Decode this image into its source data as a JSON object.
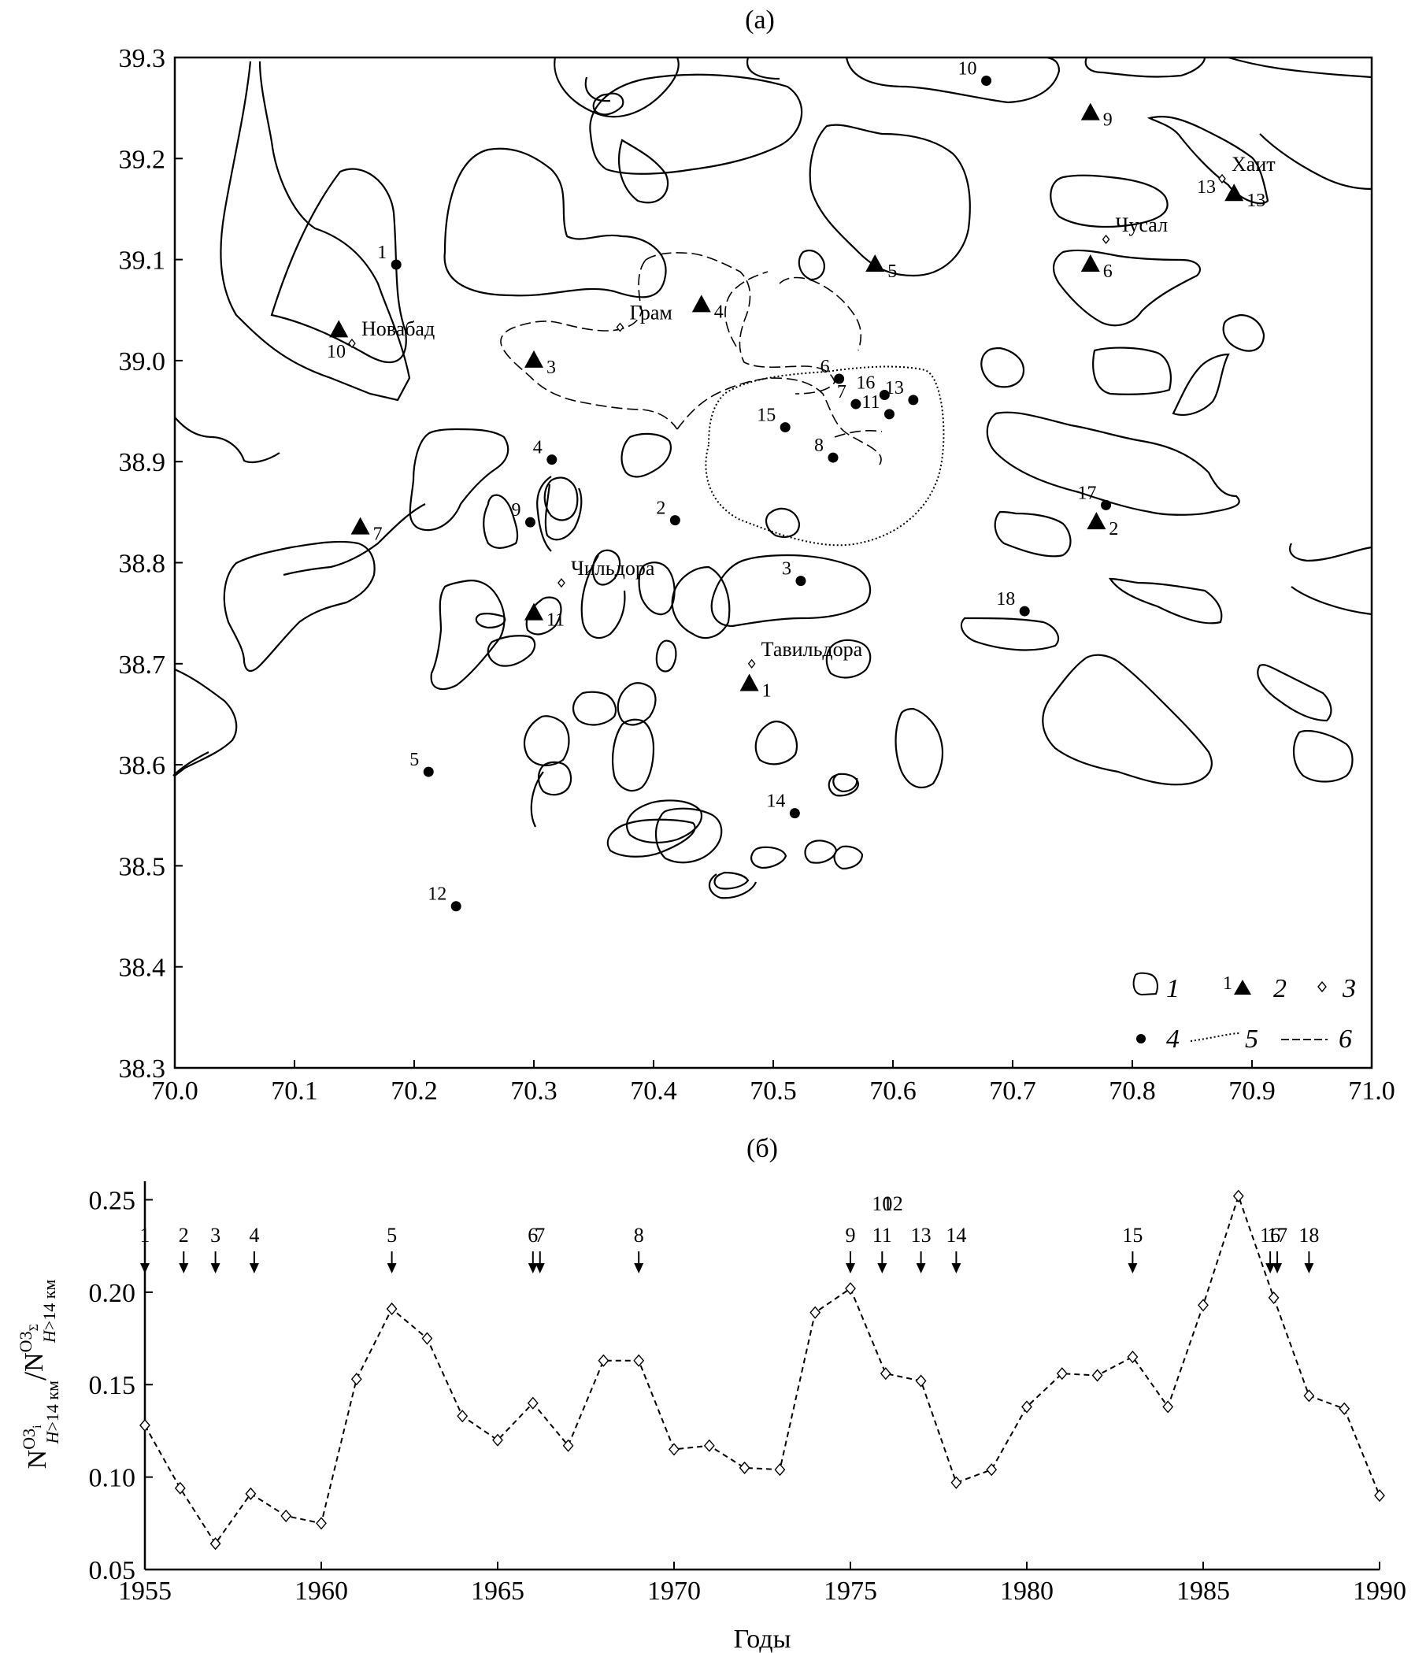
{
  "figure": {
    "panel_a": "(а)",
    "panel_b": "(б)",
    "xlabel_b": "Годы",
    "ylabel_b": "N^{O3i}_{H>14 км} / N^{O3Σ}_{H>14 км}"
  },
  "chart_data": [
    {
      "type": "scatter",
      "panel": "(а)",
      "xlim": [
        70.0,
        71.0
      ],
      "ylim": [
        38.3,
        39.3
      ],
      "xticks": [
        "70.0",
        "70.1",
        "70.2",
        "70.3",
        "70.4",
        "70.5",
        "70.6",
        "70.7",
        "70.8",
        "70.9",
        "71.0"
      ],
      "yticks": [
        "38.3",
        "38.4",
        "38.5",
        "38.6",
        "38.7",
        "38.8",
        "38.9",
        "39.0",
        "39.1",
        "39.2",
        "39.3"
      ],
      "legend": [
        {
          "symbol": "contour",
          "label": "1"
        },
        {
          "symbol": "triangle",
          "label": "2",
          "marker_number": "1"
        },
        {
          "symbol": "diamond",
          "label": "3"
        },
        {
          "symbol": "circle",
          "label": "4"
        },
        {
          "symbol": "dotted-line",
          "label": "5"
        },
        {
          "symbol": "cross-line",
          "label": "6"
        }
      ],
      "legend_position": "bottom-right",
      "triangles": [
        {
          "n": "1",
          "x": 70.48,
          "y": 38.68
        },
        {
          "n": "2",
          "x": 70.77,
          "y": 38.84
        },
        {
          "n": "3",
          "x": 70.3,
          "y": 39.0
        },
        {
          "n": "4",
          "x": 70.44,
          "y": 39.055
        },
        {
          "n": "5",
          "x": 70.585,
          "y": 39.095
        },
        {
          "n": "6",
          "x": 70.765,
          "y": 39.095
        },
        {
          "n": "7",
          "x": 70.155,
          "y": 38.835
        },
        {
          "n": "9",
          "x": 70.765,
          "y": 39.245
        },
        {
          "n": "11",
          "x": 70.3,
          "y": 38.75
        },
        {
          "n": "13",
          "x": 70.885,
          "y": 39.165
        },
        {
          "n": "",
          "x": 70.137,
          "y": 39.03
        }
      ],
      "circles": [
        {
          "n": "1",
          "x": 70.185,
          "y": 39.095
        },
        {
          "n": "2",
          "x": 70.418,
          "y": 38.842
        },
        {
          "n": "3",
          "x": 70.523,
          "y": 38.782
        },
        {
          "n": "4",
          "x": 70.315,
          "y": 38.902
        },
        {
          "n": "5",
          "x": 70.212,
          "y": 38.593
        },
        {
          "n": "6",
          "x": 70.555,
          "y": 38.982
        },
        {
          "n": "7",
          "x": 70.569,
          "y": 38.957
        },
        {
          "n": "8",
          "x": 70.55,
          "y": 38.904
        },
        {
          "n": "9",
          "x": 70.297,
          "y": 38.84
        },
        {
          "n": "10",
          "x": 70.678,
          "y": 39.277
        },
        {
          "n": "11",
          "x": 70.597,
          "y": 38.947
        },
        {
          "n": "12",
          "x": 70.235,
          "y": 38.46
        },
        {
          "n": "13",
          "x": 70.617,
          "y": 38.961
        },
        {
          "n": "14",
          "x": 70.518,
          "y": 38.552
        },
        {
          "n": "15",
          "x": 70.51,
          "y": 38.934
        },
        {
          "n": "16",
          "x": 70.593,
          "y": 38.966
        },
        {
          "n": "17",
          "x": 70.778,
          "y": 38.857
        },
        {
          "n": "18",
          "x": 70.71,
          "y": 38.752
        }
      ],
      "settlements": [
        {
          "name": "Новабад",
          "n": "10",
          "x": 70.148,
          "y": 39.017
        },
        {
          "name": "Грам",
          "n": "",
          "x": 70.372,
          "y": 39.033
        },
        {
          "name": "Чильдора",
          "n": "",
          "x": 70.323,
          "y": 38.78
        },
        {
          "name": "Тавильдора",
          "n": "",
          "x": 70.482,
          "y": 38.7
        },
        {
          "name": "Чусал",
          "n": "",
          "x": 70.778,
          "y": 39.12
        },
        {
          "name": "Хаит",
          "n": "13",
          "x": 70.875,
          "y": 39.18
        }
      ]
    },
    {
      "type": "line",
      "panel": "(б)",
      "xlabel": "Годы",
      "xlim": [
        1955,
        1990
      ],
      "ylim": [
        0.05,
        0.26
      ],
      "xticks": [
        "1955",
        "1960",
        "1965",
        "1970",
        "1975",
        "1980",
        "1985",
        "1990"
      ],
      "yticks": [
        "0.05",
        "0.10",
        "0.15",
        "0.20",
        "0.25"
      ],
      "grid": false,
      "x": [
        1955,
        1956,
        1957,
        1958,
        1959,
        1960,
        1961,
        1962,
        1963,
        1964,
        1965,
        1966,
        1967,
        1968,
        1969,
        1970,
        1971,
        1972,
        1973,
        1974,
        1975,
        1976,
        1977,
        1978,
        1979,
        1980,
        1981,
        1982,
        1983,
        1984,
        1985,
        1986,
        1987,
        1988,
        1989,
        1990
      ],
      "values": [
        0.128,
        0.094,
        0.064,
        0.091,
        0.079,
        0.075,
        0.153,
        0.191,
        0.175,
        0.133,
        0.12,
        0.14,
        0.117,
        0.163,
        0.163,
        0.115,
        0.117,
        0.105,
        0.104,
        0.189,
        0.202,
        0.156,
        0.152,
        0.097,
        0.104,
        0.138,
        0.156,
        0.155,
        0.165,
        0.138,
        0.193,
        0.252,
        0.197,
        0.144,
        0.137,
        0.09
      ],
      "events": [
        {
          "n": "1",
          "x": 1955.0
        },
        {
          "n": "2",
          "x": 1956.1
        },
        {
          "n": "3",
          "x": 1957.0
        },
        {
          "n": "4",
          "x": 1958.1
        },
        {
          "n": "5",
          "x": 1962.0
        },
        {
          "n": "6",
          "x": 1966.0
        },
        {
          "n": "7",
          "x": 1966.2
        },
        {
          "n": "8",
          "x": 1969.0
        },
        {
          "n": "9",
          "x": 1975.0
        },
        {
          "n": "10",
          "x": 1975.9
        },
        {
          "n": "11",
          "x": 1975.9
        },
        {
          "n": "12",
          "x": 1976.2
        },
        {
          "n": "13",
          "x": 1977.0
        },
        {
          "n": "14",
          "x": 1978.0
        },
        {
          "n": "15",
          "x": 1983.0
        },
        {
          "n": "16",
          "x": 1986.9
        },
        {
          "n": "17",
          "x": 1987.1
        },
        {
          "n": "18",
          "x": 1988.0
        }
      ]
    }
  ]
}
